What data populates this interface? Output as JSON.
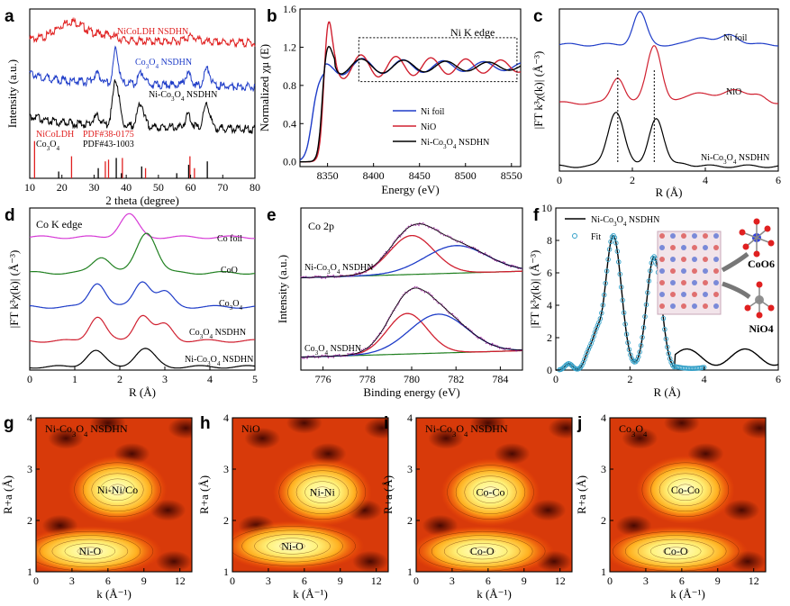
{
  "chart_data": [
    {
      "panel": "a",
      "type": "line",
      "xlabel": "2 theta (degree)",
      "ylabel": "Intensity (a.u.)",
      "xlim": [
        10,
        80
      ],
      "xticks": [
        10,
        20,
        30,
        40,
        50,
        60,
        70,
        80
      ],
      "series": [
        {
          "name": "NiCoLDH NSDHN",
          "color": "#e02020",
          "offset": 0.82,
          "peaks": [
            [
              23,
              0.06,
              4
            ],
            [
              34,
              0.03,
              3
            ],
            [
              60,
              0.03,
              2
            ]
          ]
        },
        {
          "name": "Co3O4 NSDHN",
          "color": "#1e3cc8",
          "offset": 0.57,
          "peaks": [
            [
              31,
              0.05,
              1.2
            ],
            [
              36.8,
              0.2,
              0.8
            ],
            [
              44.8,
              0.07,
              0.9
            ],
            [
              59.3,
              0.07,
              1
            ],
            [
              65.2,
              0.1,
              1
            ]
          ]
        },
        {
          "name": "Ni-Co3O4 NSDHN",
          "color": "#000000",
          "offset": 0.32,
          "peaks": [
            [
              31,
              0.05,
              1.2
            ],
            [
              36.8,
              0.27,
              1
            ],
            [
              44.5,
              0.14,
              1
            ],
            [
              59.3,
              0.07,
              1
            ],
            [
              65,
              0.14,
              1
            ]
          ]
        }
      ],
      "legend": [
        {
          "text": "NiCoLDH NSDHN",
          "color": "#e02020"
        },
        {
          "text": "Co3O4 NSDHN",
          "color": "#1e3cc8"
        },
        {
          "text": "Ni-Co3O4 NSDHN",
          "color": "#000000"
        }
      ],
      "references": [
        {
          "name": "NiCoLDH",
          "pdf": "PDF#38-0175",
          "color": "#e02020",
          "lines": [
            [
              11.5,
              0.22
            ],
            [
              23,
              0.13
            ],
            [
              33.5,
              0.1
            ],
            [
              34.5,
              0.11
            ],
            [
              38.8,
              0.12
            ],
            [
              46,
              0.06
            ],
            [
              59.8,
              0.13
            ],
            [
              61.2,
              0.06
            ]
          ]
        },
        {
          "name": "Co3O4",
          "pdf": "PDF#43-1003",
          "color": "#000000",
          "lines": [
            [
              19,
              0.04
            ],
            [
              31.3,
              0.06
            ],
            [
              36.9,
              0.12
            ],
            [
              38.5,
              0.03
            ],
            [
              44.8,
              0.07
            ],
            [
              55.7,
              0.03
            ],
            [
              59.4,
              0.08
            ],
            [
              65.2,
              0.1
            ]
          ]
        }
      ]
    },
    {
      "panel": "b",
      "type": "line",
      "title": "Ni K edge",
      "xlabel": "Energy (eV)",
      "ylabel": "Normalized χμ (E)",
      "xlim": [
        8320,
        8560
      ],
      "ylim": [
        -0.05,
        1.6
      ],
      "xticks": [
        8350,
        8400,
        8450,
        8500,
        8550
      ],
      "yticks": [
        0.0,
        0.4,
        0.8,
        1.2,
        1.6
      ],
      "series": [
        {
          "name": "Ni foil",
          "color": "#1e3cc8"
        },
        {
          "name": "NiO",
          "color": "#d02030"
        },
        {
          "name": "Ni-Co3O4 NSDHN",
          "color": "#000000"
        }
      ]
    },
    {
      "panel": "c",
      "type": "line",
      "xlabel": "R (Å)",
      "ylabel": "|FT k³χ(k)| (Å⁻³)",
      "xlim": [
        0,
        6
      ],
      "xticks": [
        0,
        2,
        4,
        6
      ],
      "series": [
        {
          "name": "Ni foil",
          "color": "#1e3cc8",
          "offset": 0.78,
          "peaks": [
            [
              2.2,
              0.2,
              0.18
            ],
            [
              3.9,
              0.05,
              0.25
            ],
            [
              4.7,
              0.06,
              0.25
            ]
          ]
        },
        {
          "name": "NiO",
          "color": "#d02030",
          "offset": 0.42,
          "peaks": [
            [
              1.6,
              0.16,
              0.18
            ],
            [
              2.6,
              0.36,
              0.2
            ],
            [
              3.8,
              0.07,
              0.3
            ],
            [
              4.8,
              0.09,
              0.3
            ],
            [
              5.5,
              0.04,
              0.2
            ]
          ]
        },
        {
          "name": "Ni-Co3O4 NSDHN",
          "color": "#000000",
          "offset": 0.03,
          "peaks": [
            [
              1.55,
              0.34,
              0.22
            ],
            [
              2.65,
              0.3,
              0.2
            ],
            [
              3.4,
              0.02,
              0.2
            ]
          ]
        }
      ],
      "guide_lines": [
        1.6,
        2.6
      ]
    },
    {
      "panel": "d",
      "type": "line",
      "title": "Co K edge",
      "xlabel": "R (Å)",
      "ylabel": "|FT k³χ(k)| (Å⁻³)",
      "xlim": [
        0,
        5
      ],
      "xticks": [
        0,
        1,
        2,
        3,
        4,
        5
      ],
      "series": [
        {
          "name": "Co foil",
          "color": "#d63ad6",
          "offset": 0.82,
          "peaks": [
            [
              2.2,
              0.14,
              0.2
            ]
          ]
        },
        {
          "name": "CoO",
          "color": "#208020",
          "offset": 0.6,
          "peaks": [
            [
              1.6,
              0.1,
              0.2
            ],
            [
              2.6,
              0.25,
              0.22
            ]
          ]
        },
        {
          "name": "Co3O4",
          "color": "#1e3cc8",
          "offset": 0.39,
          "peaks": [
            [
              1.5,
              0.15,
              0.18
            ],
            [
              2.5,
              0.16,
              0.18
            ],
            [
              3.0,
              0.09,
              0.18
            ]
          ]
        },
        {
          "name": "Co3O4 NSDHN",
          "color": "#d02030",
          "offset": 0.18,
          "peaks": [
            [
              1.5,
              0.15,
              0.18
            ],
            [
              2.5,
              0.16,
              0.18
            ],
            [
              3.0,
              0.1,
              0.18
            ]
          ]
        },
        {
          "name": "Ni-Co3O4 NSDHN",
          "color": "#000000",
          "offset": 0.02,
          "peaks": [
            [
              1.45,
              0.1,
              0.2
            ],
            [
              2.55,
              0.11,
              0.22
            ]
          ]
        }
      ]
    },
    {
      "panel": "e",
      "type": "line",
      "title": "Co 2p",
      "xlabel": "Binding energy (eV)",
      "ylabel": "Intensity (a.u.)",
      "xlim": [
        775,
        785
      ],
      "xticks": [
        776,
        778,
        780,
        782,
        784
      ],
      "spectra": [
        {
          "name": "Ni-Co3O4 NSDHN",
          "offset": 0.57,
          "components": [
            {
              "center": 780,
              "height": 0.24,
              "width": 1.0,
              "color": "#d02030"
            },
            {
              "center": 782,
              "height": 0.17,
              "width": 1.4,
              "color": "#1e3cc8"
            }
          ]
        },
        {
          "name": "Co3O4 NSDHN",
          "offset": 0.08,
          "components": [
            {
              "center": 779.8,
              "height": 0.25,
              "width": 0.9,
              "color": "#d02030"
            },
            {
              "center": 781.2,
              "height": 0.24,
              "width": 1.3,
              "color": "#1e3cc8"
            }
          ]
        }
      ]
    },
    {
      "panel": "f",
      "type": "line",
      "xlabel": "R (Å)",
      "ylabel": "|FT k³χ(k)| (Å⁻³)",
      "xlim": [
        0,
        6
      ],
      "ylim": [
        0,
        10
      ],
      "xticks": [
        0,
        2,
        4,
        6
      ],
      "yticks": [
        0,
        2,
        4,
        6,
        8,
        10
      ],
      "series": [
        {
          "name": "Ni-Co3O4 NSDHN",
          "color": "#000000",
          "style": "line"
        },
        {
          "name": "Fit",
          "color": "#33a0c8",
          "style": "circles"
        }
      ],
      "inset_labels": [
        "CoO6",
        "NiO4"
      ]
    },
    {
      "panel": "g",
      "type": "heatmap",
      "title": "Ni-Co3O4 NSDHN",
      "xlabel": "k (Å⁻¹)",
      "ylabel": "R+a (Å)",
      "xlim": [
        0,
        13
      ],
      "ylim": [
        1,
        4
      ],
      "xticks": [
        0,
        3,
        6,
        9,
        12
      ],
      "yticks": [
        1,
        2,
        3,
        4
      ],
      "peaks": [
        {
          "label": "Ni-O",
          "k": 4.5,
          "r": 1.4
        },
        {
          "label": "Ni-Ni/Co",
          "k": 6.8,
          "r": 2.6
        }
      ]
    },
    {
      "panel": "h",
      "type": "heatmap",
      "title": "NiO",
      "xlabel": "k (Å⁻¹)",
      "ylabel": "R+a (Å)",
      "xlim": [
        0,
        13
      ],
      "ylim": [
        1,
        4
      ],
      "xticks": [
        0,
        3,
        6,
        9,
        12
      ],
      "yticks": [
        1,
        2,
        3,
        4
      ],
      "peaks": [
        {
          "label": "Ni-O",
          "k": 5,
          "r": 1.5
        },
        {
          "label": "Ni-Ni",
          "k": 7.5,
          "r": 2.55
        }
      ]
    },
    {
      "panel": "i",
      "type": "heatmap",
      "title": "Ni-Co3O4 NSDHN",
      "xlabel": "k (Å⁻¹)",
      "ylabel": "R+a (Å)",
      "xlim": [
        0,
        13
      ],
      "ylim": [
        1,
        4
      ],
      "xticks": [
        0,
        3,
        6,
        9,
        12
      ],
      "yticks": [
        1,
        2,
        3,
        4
      ],
      "peaks": [
        {
          "label": "Co-O",
          "k": 5.5,
          "r": 1.4
        },
        {
          "label": "Co-Co",
          "k": 6.2,
          "r": 2.55
        }
      ]
    },
    {
      "panel": "j",
      "type": "heatmap",
      "title": "Co3O4",
      "xlabel": "k (Å⁻¹)",
      "ylabel": "R+a (Å)",
      "xlim": [
        0,
        13
      ],
      "ylim": [
        1,
        4
      ],
      "xticks": [
        0,
        3,
        6,
        9,
        12
      ],
      "yticks": [
        1,
        2,
        3,
        4
      ],
      "peaks": [
        {
          "label": "Co-O",
          "k": 5.5,
          "r": 1.4
        },
        {
          "label": "Co-Co",
          "k": 6.3,
          "r": 2.6
        }
      ]
    }
  ]
}
